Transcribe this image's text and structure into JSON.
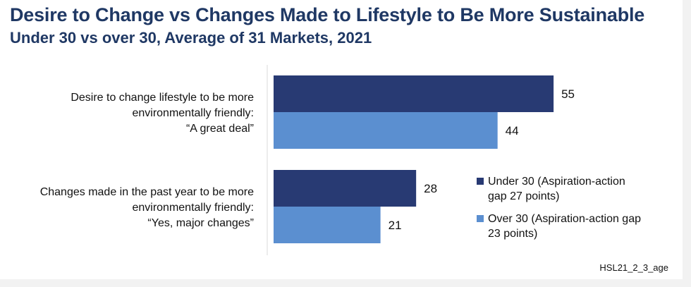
{
  "chart_data": {
    "type": "bar",
    "orientation": "horizontal",
    "title": "Desire to Change vs Changes Made to Lifestyle to Be More Sustainable",
    "subtitle": "Under 30 vs over 30, Average of 31 Markets, 2021",
    "categories": [
      [
        "Desire to change lifestyle to be more",
        "environmentally friendly:",
        "“A great deal”"
      ],
      [
        "Changes made in the past year to be more",
        "environmentally friendly:",
        "“Yes, major changes”"
      ]
    ],
    "series": [
      {
        "name": "Under 30 (Aspiration-action gap 27 points)",
        "legend_lines": [
          "Under 30 (Aspiration-action",
          "gap 27 points)"
        ],
        "values": [
          55,
          28
        ],
        "color": "#283a73"
      },
      {
        "name": "Over 30 (Aspiration-action gap 23 points)",
        "legend_lines": [
          "Over 30 (Aspiration-action gap",
          "23 points)"
        ],
        "values": [
          44,
          21
        ],
        "color": "#5b8fd0"
      }
    ],
    "xlim": [
      0,
      100
    ],
    "grid": false,
    "legend_position": "bottom-right",
    "data_labels": true
  },
  "source": "HSL21_2_3_age"
}
